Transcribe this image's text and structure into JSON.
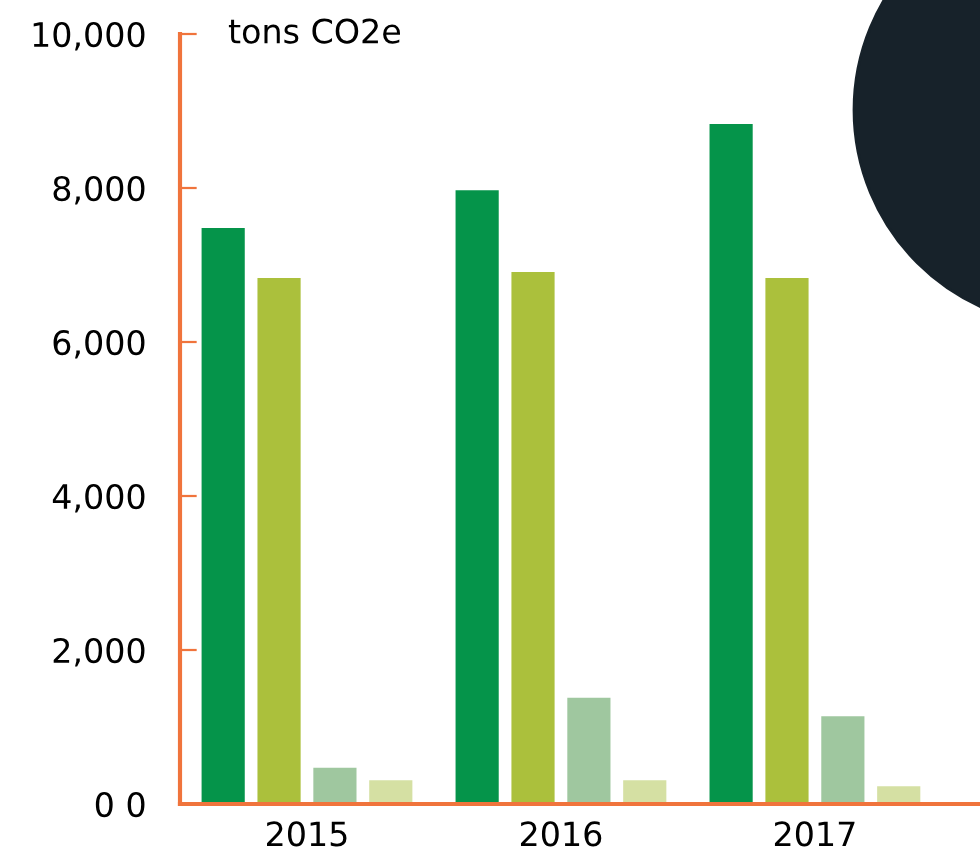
{
  "chart_data": {
    "type": "bar",
    "ylabel": "tons CO2e",
    "categories": [
      "2015",
      "2016",
      "2017"
    ],
    "series": [
      {
        "color": "#05944a",
        "values": [
          7480,
          7970,
          8830
        ]
      },
      {
        "color": "#abc03c",
        "values": [
          6830,
          6910,
          6830
        ]
      },
      {
        "color": "#9fc79f",
        "values": [
          470,
          1380,
          1140
        ]
      },
      {
        "color": "#d5e0a3",
        "values": [
          310,
          310,
          230
        ]
      }
    ],
    "ylim": [
      0,
      10000
    ],
    "yticks": [
      {
        "value": 0,
        "label": "0 0"
      },
      {
        "value": 2000,
        "label": "2,000"
      },
      {
        "value": 4000,
        "label": "4,000"
      },
      {
        "value": 6000,
        "label": "6,000"
      },
      {
        "value": 8000,
        "label": "8,000"
      },
      {
        "value": 10000,
        "label": "10,000"
      }
    ],
    "grid": false,
    "legend": false
  }
}
